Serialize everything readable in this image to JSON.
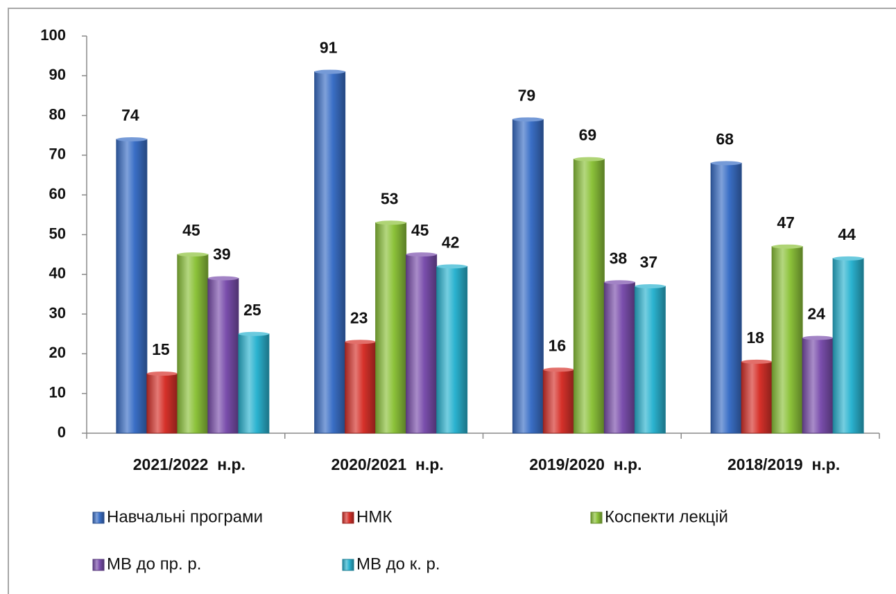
{
  "chart_data": {
    "type": "bar",
    "categories": [
      "2021/2022  н.р.",
      "2020/2021  н.р.",
      "2019/2020  н.р.",
      "2018/2019  н.р."
    ],
    "series": [
      {
        "name": "Навчальні програми",
        "color": "#3a6fc6",
        "values": [
          74,
          91,
          79,
          68
        ]
      },
      {
        "name": "НМК",
        "color": "#d6312a",
        "values": [
          15,
          23,
          16,
          18
        ]
      },
      {
        "name": "Коспекти лекцій",
        "color": "#8cc23a",
        "values": [
          45,
          53,
          69,
          47
        ]
      },
      {
        "name": "МВ до пр. р.",
        "color": "#7a4eac",
        "values": [
          39,
          45,
          38,
          24
        ]
      },
      {
        "name": "МВ до к. р.",
        "color": "#2bb3d0",
        "values": [
          25,
          42,
          37,
          44
        ]
      }
    ],
    "ylim": [
      0,
      100
    ],
    "yticks": [
      0,
      10,
      20,
      30,
      40,
      50,
      60,
      70,
      80,
      90,
      100
    ],
    "data_labels": true,
    "legend": "bottom"
  }
}
